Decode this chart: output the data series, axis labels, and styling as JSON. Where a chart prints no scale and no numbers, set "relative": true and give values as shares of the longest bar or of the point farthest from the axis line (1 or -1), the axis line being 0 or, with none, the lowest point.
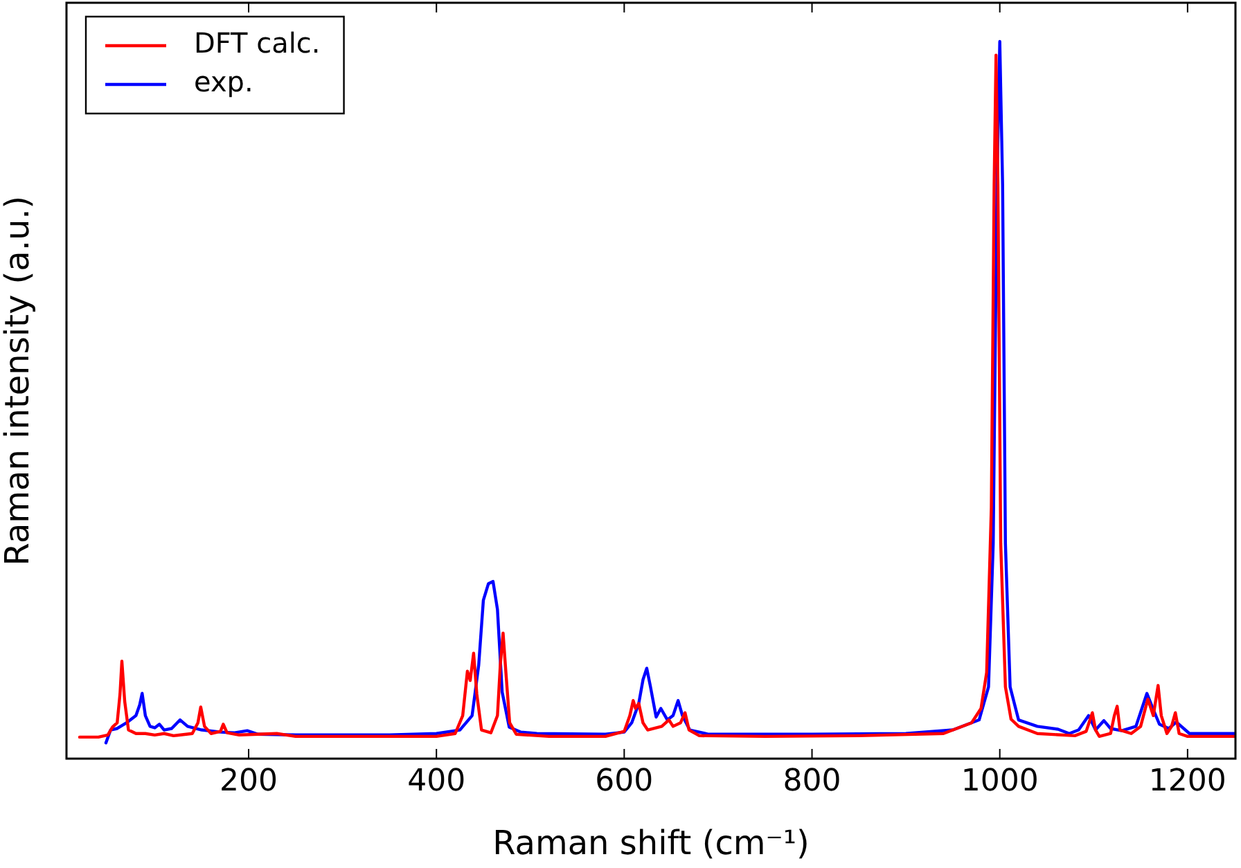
{
  "chart_data": {
    "type": "line",
    "xlabel": "Raman shift (cm⁻¹)",
    "ylabel": "Raman intensity (a.u.)",
    "relative": true,
    "xlim": [
      6,
      1251
    ],
    "xticks": [
      200,
      400,
      600,
      800,
      1000,
      1200
    ],
    "legend": "top left",
    "grid": false,
    "marker": "none",
    "series": [
      {
        "name": "DFT calc.",
        "color": "#ff0000",
        "x": [
          20,
          40,
          50,
          55,
          60,
          63,
          65,
          68,
          72,
          80,
          90,
          100,
          110,
          120,
          140,
          146,
          149,
          153,
          160,
          170,
          173,
          177,
          190,
          210,
          230,
          250,
          300,
          400,
          420,
          428,
          433,
          436,
          439.6,
          443,
          448,
          458,
          465,
          468,
          471,
          474,
          478,
          485,
          520,
          580,
          600,
          606,
          609.6,
          612,
          615.5,
          620,
          625,
          640,
          647.6,
          652,
          660,
          664.8,
          669,
          680,
          750,
          850,
          940,
          970,
          980,
          986,
          991,
          994,
          996,
          998,
          1001,
          1006,
          1012,
          1020,
          1040,
          1080,
          1092,
          1098.6,
          1102,
          1106,
          1118,
          1122,
          1125,
          1128,
          1140,
          1150,
          1157.7,
          1163.5,
          1168.6,
          1172,
          1178,
          1183,
          1187,
          1191,
          1200,
          1251
        ],
        "values": [
          0.03,
          0.03,
          0.033,
          0.044,
          0.05,
          0.09,
          0.136,
          0.08,
          0.04,
          0.035,
          0.035,
          0.033,
          0.035,
          0.032,
          0.035,
          0.05,
          0.072,
          0.045,
          0.035,
          0.038,
          0.048,
          0.036,
          0.033,
          0.034,
          0.035,
          0.031,
          0.031,
          0.031,
          0.035,
          0.06,
          0.122,
          0.109,
          0.147,
          0.09,
          0.04,
          0.036,
          0.06,
          0.13,
          0.175,
          0.12,
          0.05,
          0.034,
          0.031,
          0.031,
          0.038,
          0.06,
          0.081,
          0.07,
          0.077,
          0.05,
          0.04,
          0.045,
          0.054,
          0.045,
          0.05,
          0.064,
          0.04,
          0.032,
          0.031,
          0.032,
          0.035,
          0.05,
          0.07,
          0.12,
          0.35,
          0.8,
          0.981,
          0.8,
          0.3,
          0.1,
          0.055,
          0.045,
          0.035,
          0.032,
          0.038,
          0.064,
          0.04,
          0.031,
          0.035,
          0.06,
          0.073,
          0.04,
          0.035,
          0.045,
          0.083,
          0.06,
          0.102,
          0.06,
          0.035,
          0.045,
          0.064,
          0.035,
          0.031,
          0.031
        ]
      },
      {
        "name": "exp.",
        "color": "#0000ff",
        "x": [
          48,
          53,
          60,
          70,
          80,
          84,
          86.6,
          90,
          95,
          100,
          105,
          110,
          118,
          127,
          135,
          150,
          170,
          185,
          198.5,
          210,
          250,
          350,
          400,
          425,
          438,
          445,
          450,
          455.4,
          460.3,
          465,
          470,
          477.5,
          490,
          507,
          580,
          600,
          608,
          615.5,
          620,
          624,
          628,
          634,
          639,
          646,
          652,
          657.4,
          662,
          669.8,
          690,
          800,
          900,
          950,
          978,
          988,
          993,
          997,
          1000,
          1003,
          1006,
          1011,
          1020,
          1040,
          1062,
          1074,
          1084,
          1094.6,
          1102,
          1110.9,
          1118,
          1130,
          1145,
          1156.7,
          1163,
          1170,
          1180,
          1188,
          1202,
          1251
        ],
        "values": [
          0.022,
          0.04,
          0.042,
          0.05,
          0.06,
          0.075,
          0.091,
          0.06,
          0.045,
          0.043,
          0.048,
          0.04,
          0.042,
          0.054,
          0.045,
          0.04,
          0.037,
          0.036,
          0.039,
          0.034,
          0.033,
          0.033,
          0.035,
          0.04,
          0.06,
          0.13,
          0.221,
          0.244,
          0.247,
          0.208,
          0.093,
          0.044,
          0.037,
          0.035,
          0.034,
          0.037,
          0.05,
          0.077,
          0.11,
          0.126,
          0.1,
          0.058,
          0.07,
          0.054,
          0.06,
          0.081,
          0.06,
          0.04,
          0.034,
          0.034,
          0.035,
          0.04,
          0.054,
          0.1,
          0.3,
          0.8,
          1.0,
          0.8,
          0.3,
          0.1,
          0.054,
          0.045,
          0.041,
          0.035,
          0.04,
          0.06,
          0.04,
          0.053,
          0.042,
          0.039,
          0.045,
          0.091,
          0.07,
          0.048,
          0.042,
          0.051,
          0.035,
          0.035
        ]
      }
    ]
  }
}
